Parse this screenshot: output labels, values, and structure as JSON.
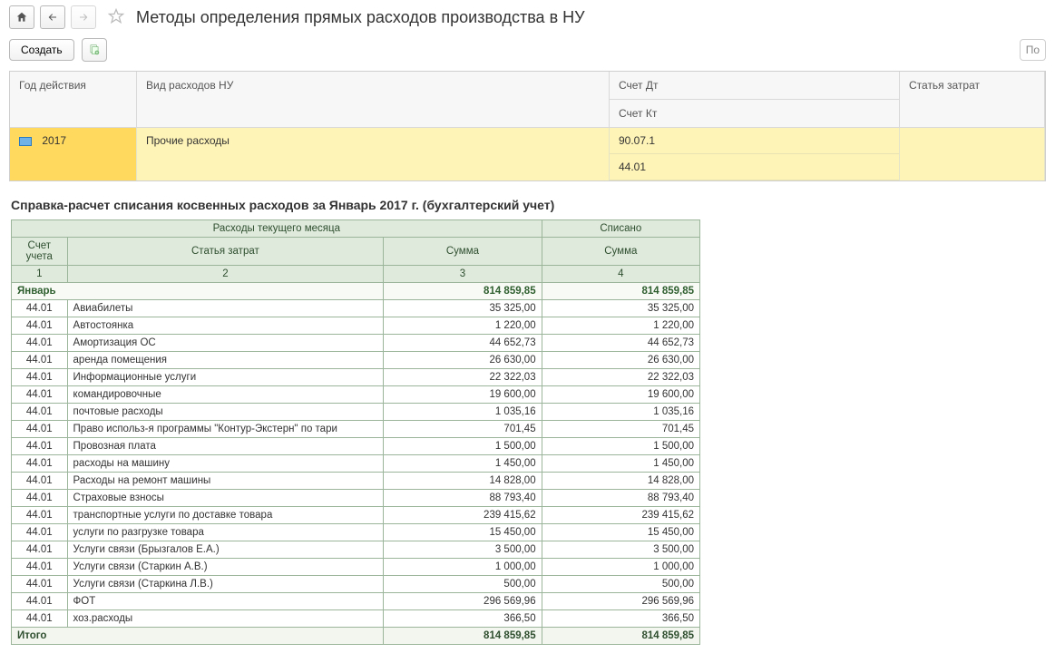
{
  "header": {
    "title": "Методы определения прямых расходов производства в НУ"
  },
  "toolbar": {
    "create_label": "Создать",
    "right_hint": "По"
  },
  "grid": {
    "columns": {
      "year": "Год действия",
      "expense_type": "Вид расходов НУ",
      "acc_dt": "Счет Дт",
      "acc_kt": "Счет Кт",
      "cost_item": "Статья затрат"
    },
    "row": {
      "year": "2017",
      "expense_type": "Прочие расходы",
      "acc_dt": "90.07.1",
      "acc_kt": "44.01",
      "cost_item": ""
    }
  },
  "report": {
    "title": "Справка-расчет списания косвенных расходов за Январь 2017 г. (бухгалтерский учет)",
    "group_header_current": "Расходы текущего месяца",
    "group_header_written": "Списано",
    "col_account": "Счет учета",
    "col_article": "Статья затрат",
    "col_sum": "Сумма",
    "colnums": [
      "1",
      "2",
      "3",
      "4"
    ],
    "month_label": "Январь",
    "month_sum": "814 859,85",
    "month_written": "814 859,85",
    "rows": [
      {
        "acc": "44.01",
        "art": "Авиабилеты",
        "s": "35 325,00",
        "w": "35 325,00"
      },
      {
        "acc": "44.01",
        "art": "Автостоянка",
        "s": "1 220,00",
        "w": "1 220,00"
      },
      {
        "acc": "44.01",
        "art": "Амортизация ОС",
        "s": "44 652,73",
        "w": "44 652,73"
      },
      {
        "acc": "44.01",
        "art": "аренда помещения",
        "s": "26 630,00",
        "w": "26 630,00"
      },
      {
        "acc": "44.01",
        "art": "Информационные услуги",
        "s": "22 322,03",
        "w": "22 322,03"
      },
      {
        "acc": "44.01",
        "art": "командировочные",
        "s": "19 600,00",
        "w": "19 600,00"
      },
      {
        "acc": "44.01",
        "art": "почтовые расходы",
        "s": "1 035,16",
        "w": "1 035,16"
      },
      {
        "acc": "44.01",
        "art": "Право использ-я программы \"Контур-Экстерн\" по тари",
        "s": "701,45",
        "w": "701,45"
      },
      {
        "acc": "44.01",
        "art": "Провозная плата",
        "s": "1 500,00",
        "w": "1 500,00"
      },
      {
        "acc": "44.01",
        "art": "расходы на машину",
        "s": "1 450,00",
        "w": "1 450,00"
      },
      {
        "acc": "44.01",
        "art": "Расходы на ремонт машины",
        "s": "14 828,00",
        "w": "14 828,00"
      },
      {
        "acc": "44.01",
        "art": "Страховые взносы",
        "s": "88 793,40",
        "w": "88 793,40"
      },
      {
        "acc": "44.01",
        "art": "транспортные услуги по доставке товара",
        "s": "239 415,62",
        "w": "239 415,62"
      },
      {
        "acc": "44.01",
        "art": "услуги по разгрузке товара",
        "s": "15 450,00",
        "w": "15 450,00"
      },
      {
        "acc": "44.01",
        "art": "Услуги связи (Брызгалов Е.А.)",
        "s": "3 500,00",
        "w": "3 500,00"
      },
      {
        "acc": "44.01",
        "art": "Услуги связи (Старкин А.В.)",
        "s": "1 000,00",
        "w": "1 000,00"
      },
      {
        "acc": "44.01",
        "art": "Услуги связи (Старкина Л.В.)",
        "s": "500,00",
        "w": "500,00"
      },
      {
        "acc": "44.01",
        "art": "ФОТ",
        "s": "296 569,96",
        "w": "296 569,96"
      },
      {
        "acc": "44.01",
        "art": "хоз.расходы",
        "s": "366,50",
        "w": "366,50"
      }
    ],
    "total_label": "Итого",
    "total_sum": "814 859,85",
    "total_written": "814 859,85"
  },
  "style": {
    "header_bg": "#dfeadd",
    "border": "#9bb59b",
    "highlight_row": "#fff4b8",
    "highlight_selected": "#ffd95e"
  }
}
